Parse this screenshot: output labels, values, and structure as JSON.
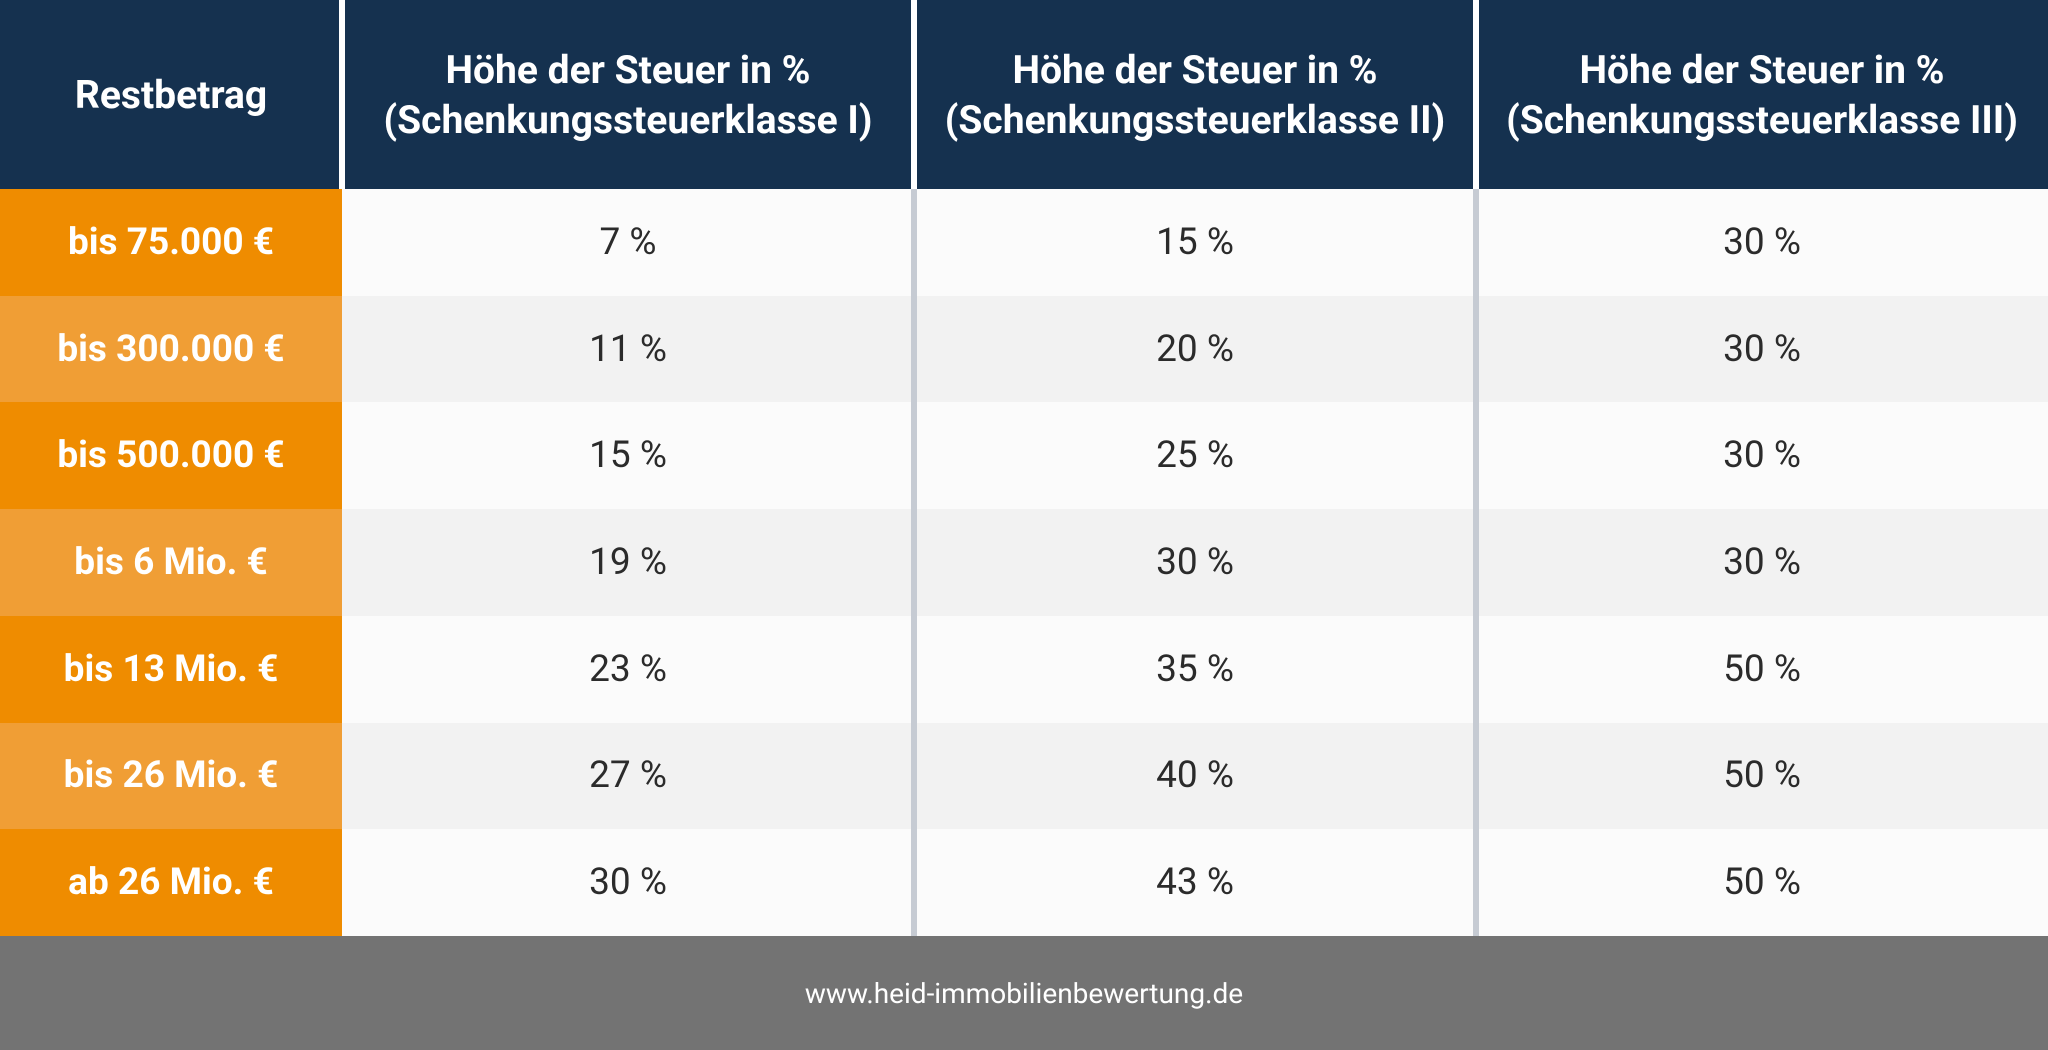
{
  "table": {
    "header": [
      [
        "Restbetrag"
      ],
      [
        "Höhe der Steuer in %",
        "(Schenkungssteuerklasse I)"
      ],
      [
        "Höhe der Steuer in %",
        "(Schenkungssteuerklasse II)"
      ],
      [
        "Höhe der Steuer in %",
        "(Schenkungssteuerklasse III)"
      ]
    ],
    "rows": [
      [
        "bis 75.000 €",
        "7 %",
        "15 %",
        "30 %"
      ],
      [
        "bis 300.000 €",
        "11 %",
        "20 %",
        "30 %"
      ],
      [
        "bis 500.000 €",
        "15 %",
        "25 %",
        "30 %"
      ],
      [
        "bis 6 Mio. €",
        "19 %",
        "30 %",
        "30 %"
      ],
      [
        "bis 13 Mio. €",
        "23 %",
        "35 %",
        "50 %"
      ],
      [
        "bis 26 Mio. €",
        "27 %",
        "40 %",
        "50 %"
      ],
      [
        "ab 26 Mio. €",
        "30 %",
        "43 %",
        "50 %"
      ]
    ]
  },
  "footer": "www.heid-immobilienbewertung.de"
}
